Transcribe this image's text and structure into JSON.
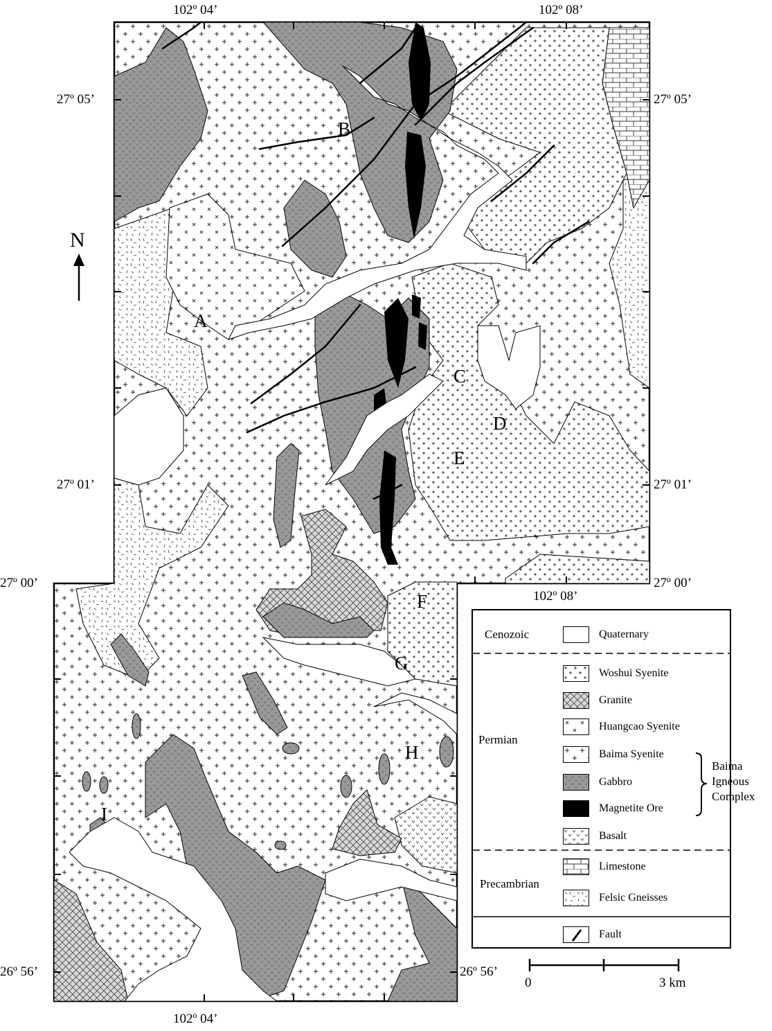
{
  "coords": {
    "top": [
      "102º 04’",
      "102º 08’"
    ],
    "bottom": [
      "102º 04’"
    ],
    "inner_lon": "102º 08’",
    "left": [
      "27º 05’",
      "27º 01’",
      "27º 00’",
      "26º 56’"
    ],
    "right": [
      "27º 05’",
      "27º 01’",
      "27º 00’",
      "26º 56’"
    ]
  },
  "north": "N",
  "sites": [
    "A",
    "B",
    "C",
    "D",
    "E",
    "F",
    "G",
    "H",
    "I"
  ],
  "legend": {
    "eras": {
      "cenozoic": "Cenozoic",
      "permian": "Permian",
      "precambrian": "Precambrian"
    },
    "units": [
      {
        "label": "Quaternary",
        "pattern": "quaternary"
      },
      {
        "label": "Woshui Syenite",
        "pattern": "woshui"
      },
      {
        "label": "Granite",
        "pattern": "granite"
      },
      {
        "label": "Huangcao Syenite",
        "pattern": "huangcao"
      },
      {
        "label": "Baima Syenite",
        "pattern": "baima"
      },
      {
        "label": "Gabbro",
        "pattern": "gabbro"
      },
      {
        "label": "Magnetite Ore",
        "pattern": "magnetite"
      },
      {
        "label": "Basalt",
        "pattern": "basalt"
      },
      {
        "label": "Limestone",
        "pattern": "limestone"
      },
      {
        "label": "Felsic Gneisses",
        "pattern": "gneiss"
      },
      {
        "label": "Fault",
        "pattern": "fault"
      }
    ],
    "group_label": [
      "Baima",
      "Igneous",
      "Complex"
    ]
  },
  "scale": {
    "start": "0",
    "end": "3 km"
  },
  "colors": {
    "gabbro": "#9a9a9a",
    "magnetite": "#000000",
    "paper": "#ffffff"
  }
}
